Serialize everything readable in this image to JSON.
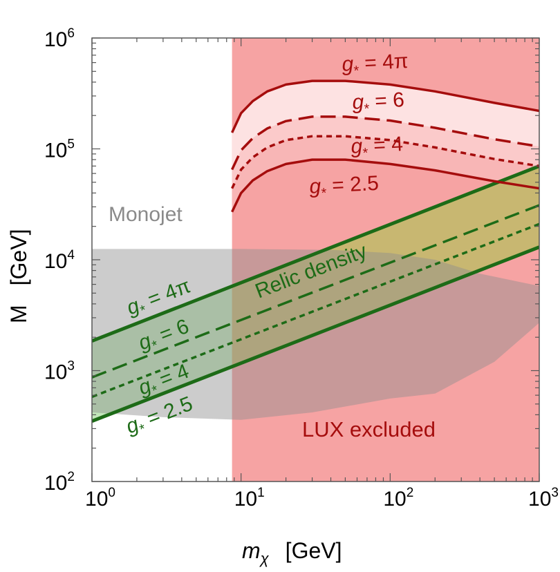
{
  "chart_data": {
    "type": "line",
    "xlabel": "m",
    "xlabel_sub": "χ",
    "xlabel_unit": "[GeV]",
    "ylabel": "M",
    "ylabel_unit": "[GeV]",
    "x_scale": "log",
    "y_scale": "log",
    "xlim": [
      1,
      1000
    ],
    "ylim": [
      100,
      1000000
    ],
    "x_ticks": [
      {
        "value": 1,
        "base": "10",
        "exp": "0"
      },
      {
        "value": 10,
        "base": "10",
        "exp": "1"
      },
      {
        "value": 100,
        "base": "10",
        "exp": "2"
      },
      {
        "value": 1000,
        "base": "10",
        "exp": "3"
      }
    ],
    "y_ticks": [
      {
        "value": 100,
        "base": "10",
        "exp": "2"
      },
      {
        "value": 1000,
        "base": "10",
        "exp": "3"
      },
      {
        "value": 10000,
        "base": "10",
        "exp": "4"
      },
      {
        "value": 100000,
        "base": "10",
        "exp": "5"
      },
      {
        "value": 1000000,
        "base": "10",
        "exp": "6"
      }
    ],
    "regions": [
      {
        "name": "Monojet",
        "label": "Monojet",
        "color": "#bdbdbd",
        "boundary": [
          [
            1,
            12500
          ],
          [
            10,
            12500
          ],
          [
            40,
            12300
          ],
          [
            100,
            11500
          ],
          [
            200,
            10000
          ],
          [
            400,
            7500
          ],
          [
            1000,
            5800
          ],
          [
            1000,
            2700
          ],
          [
            500,
            1200
          ],
          [
            200,
            620
          ],
          [
            100,
            560
          ],
          [
            30,
            420
          ],
          [
            10,
            360
          ],
          [
            3,
            380
          ],
          [
            1,
            420
          ]
        ]
      },
      {
        "name": "LUX excluded",
        "label": "LUX excluded",
        "color": "#f6a3a3",
        "x_min": 8.7
      }
    ],
    "relic_band": {
      "label": "Relic density",
      "color": "#c9b26a",
      "upper": [
        [
          1,
          1850
        ],
        [
          1000,
          70000
        ]
      ],
      "lower": [
        [
          1,
          350
        ],
        [
          1000,
          13000
        ]
      ]
    },
    "series": [
      {
        "name": "relic-4pi",
        "label_g": "g",
        "label_rest": " = 4π",
        "color": "#1d6b17",
        "style": "solid",
        "points": [
          [
            1,
            1850
          ],
          [
            1000,
            70000
          ]
        ]
      },
      {
        "name": "relic-6",
        "label_g": "g",
        "label_rest": " = 6",
        "color": "#1d6b17",
        "style": "dashed",
        "points": [
          [
            1,
            870
          ],
          [
            1000,
            31000
          ]
        ]
      },
      {
        "name": "relic-4",
        "label_g": "g",
        "label_rest": " = 4",
        "color": "#1d6b17",
        "style": "dotted",
        "points": [
          [
            1,
            580
          ],
          [
            1000,
            21000
          ]
        ]
      },
      {
        "name": "relic-2.5",
        "label_g": "g",
        "label_rest": " = 2.5",
        "color": "#1d6b17",
        "style": "solid",
        "points": [
          [
            1,
            350
          ],
          [
            1000,
            13000
          ]
        ]
      },
      {
        "name": "lux-4pi",
        "label_g": "g",
        "label_rest": " = 4π",
        "color": "#a50d0d",
        "style": "solid",
        "points": [
          [
            8.7,
            140000
          ],
          [
            10,
            210000
          ],
          [
            12,
            270000
          ],
          [
            15,
            330000
          ],
          [
            20,
            380000
          ],
          [
            30,
            410000
          ],
          [
            50,
            410000
          ],
          [
            100,
            380000
          ],
          [
            200,
            330000
          ],
          [
            500,
            260000
          ],
          [
            1000,
            220000
          ]
        ]
      },
      {
        "name": "lux-6",
        "label_g": "g",
        "label_rest": " = 6",
        "color": "#a50d0d",
        "style": "dashed",
        "points": [
          [
            8.7,
            65000
          ],
          [
            10,
            97000
          ],
          [
            12,
            125000
          ],
          [
            15,
            153000
          ],
          [
            20,
            178000
          ],
          [
            30,
            195000
          ],
          [
            50,
            195000
          ],
          [
            100,
            180000
          ],
          [
            200,
            155000
          ],
          [
            500,
            122000
          ],
          [
            1000,
            105000
          ]
        ]
      },
      {
        "name": "lux-4",
        "label_g": "g",
        "label_rest": " = 4",
        "color": "#a50d0d",
        "style": "dotted",
        "points": [
          [
            8.7,
            44000
          ],
          [
            10,
            65000
          ],
          [
            12,
            84000
          ],
          [
            15,
            103000
          ],
          [
            20,
            120000
          ],
          [
            30,
            130000
          ],
          [
            50,
            130000
          ],
          [
            100,
            120000
          ],
          [
            200,
            103000
          ],
          [
            500,
            81000
          ],
          [
            1000,
            70000
          ]
        ]
      },
      {
        "name": "lux-2.5",
        "label_g": "g",
        "label_rest": " = 2.5",
        "color": "#a50d0d",
        "style": "solid",
        "points": [
          [
            8.7,
            27000
          ],
          [
            10,
            40000
          ],
          [
            12,
            52000
          ],
          [
            15,
            63000
          ],
          [
            20,
            73000
          ],
          [
            30,
            80000
          ],
          [
            50,
            80000
          ],
          [
            100,
            73000
          ],
          [
            200,
            64000
          ],
          [
            500,
            51000
          ],
          [
            1000,
            44000
          ]
        ]
      }
    ],
    "star_symbol": "*"
  }
}
